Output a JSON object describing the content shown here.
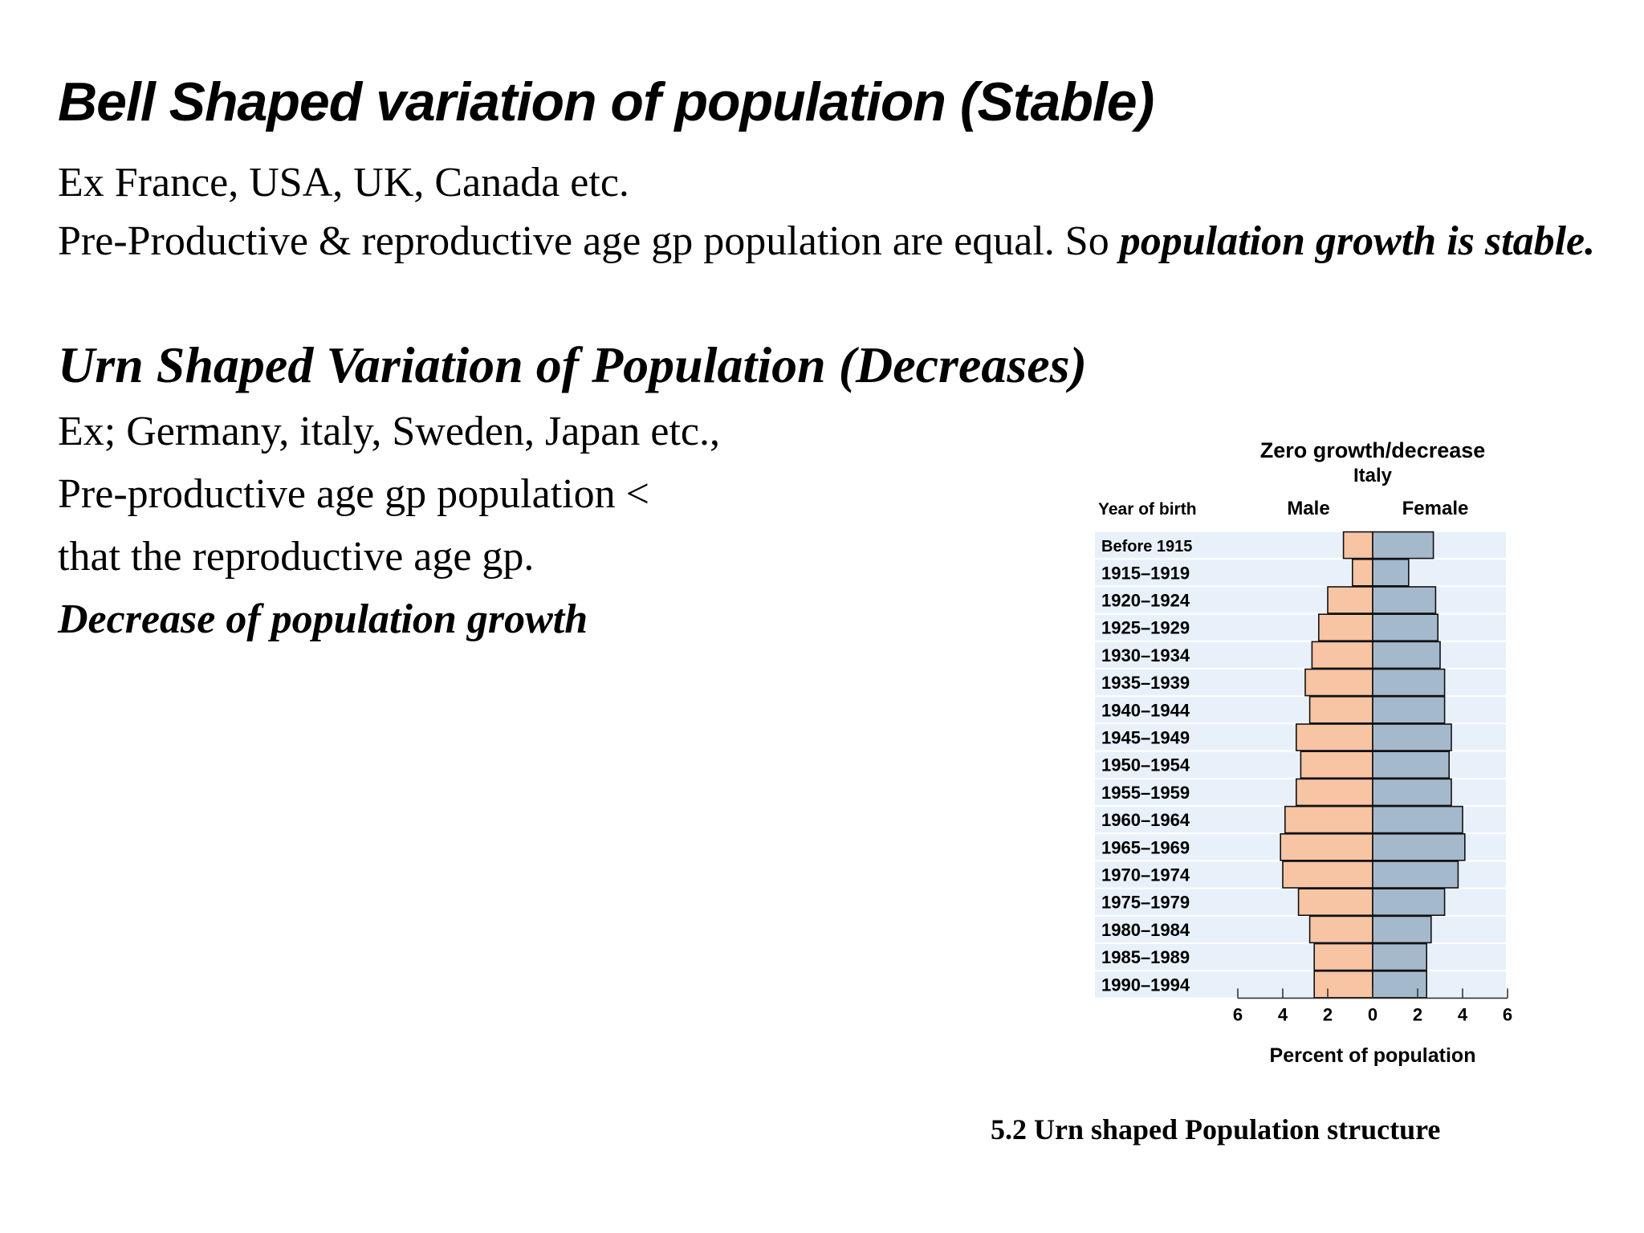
{
  "slide": {
    "title": "Bell Shaped variation of population (Stable)",
    "bell_examples": "Ex France, USA, UK, Canada etc.",
    "bell_text_plain": "Pre-Productive & reproductive age gp population are equal. So ",
    "bell_text_emphasis": "population growth is stable.",
    "urn_heading": "Urn Shaped Variation of Population (Decreases)",
    "urn_examples": "Ex; Germany, italy, Sweden, Japan etc.,",
    "urn_line1": "Pre-productive age gp population  <",
    "urn_line2": "that the reproductive age gp.",
    "urn_conclusion": "Decrease of population growth",
    "figure_caption": "5.2 Urn shaped Population structure"
  },
  "chart_data": {
    "type": "bar",
    "orientation": "horizontal-pyramid",
    "title": "Zero growth/decrease",
    "subtitle": "Italy",
    "ylabel": "Year of birth",
    "xlabel": "Percent of population",
    "xlim": [
      -6,
      6
    ],
    "xtick_labels": [
      "6",
      "4",
      "2",
      "0",
      "2",
      "4",
      "6"
    ],
    "xtick_values": [
      -6,
      -4,
      -2,
      0,
      2,
      4,
      6
    ],
    "categories": [
      "Before 1915",
      "1915–1919",
      "1920–1924",
      "1925–1929",
      "1930–1934",
      "1935–1939",
      "1940–1944",
      "1945–1949",
      "1950–1954",
      "1955–1959",
      "1960–1964",
      "1965–1969",
      "1970–1974",
      "1975–1979",
      "1980–1984",
      "1985–1989",
      "1990–1994"
    ],
    "series": [
      {
        "name": "Male",
        "values": [
          1.3,
          0.9,
          2.0,
          2.4,
          2.7,
          3.0,
          2.8,
          3.4,
          3.2,
          3.4,
          3.9,
          4.1,
          4.0,
          3.3,
          2.8,
          2.6,
          2.6
        ]
      },
      {
        "name": "Female",
        "values": [
          2.7,
          1.6,
          2.8,
          2.9,
          3.0,
          3.2,
          3.2,
          3.5,
          3.4,
          3.5,
          4.0,
          4.1,
          3.8,
          3.2,
          2.6,
          2.4,
          2.4
        ]
      }
    ],
    "colors": {
      "male": "#f7c4a4",
      "female": "#a5b9cc",
      "band": "#e8f1fa",
      "outline": "#111111"
    },
    "grid": false,
    "legend": "top"
  }
}
